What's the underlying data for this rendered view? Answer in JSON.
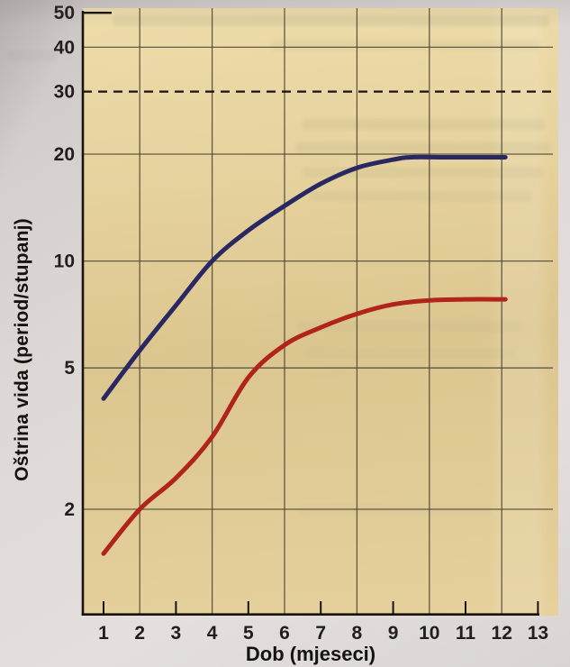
{
  "colors": {
    "page_background": "#dcd6d4",
    "plot_background": "#e3cf9a",
    "grid_line": "#4b4435",
    "axis_line": "#17130d",
    "dashed_line": "#17130d",
    "tick_text": "#221e19",
    "curve_blue": "#2a2862",
    "curve_red": "#b0241c"
  },
  "chart_data": {
    "type": "line",
    "title": "",
    "x_axis": {
      "label": "Dob (mjeseci)",
      "range": [
        1,
        13
      ],
      "ticks": [
        1,
        2,
        3,
        4,
        5,
        6,
        7,
        8,
        9,
        10,
        11,
        12,
        13
      ],
      "gridlines_at": [
        2,
        4,
        6,
        8,
        10,
        12
      ],
      "inner_ticks_at": [
        1,
        3,
        5,
        7,
        9,
        11,
        13
      ]
    },
    "y_axis": {
      "label": "Oštrina vida (period/stupanj)",
      "scale": "log",
      "range": [
        1,
        50
      ],
      "ticks": [
        50,
        40,
        30,
        20,
        10,
        5,
        2
      ],
      "gridlines_at": [
        40,
        20,
        10,
        5,
        2
      ],
      "dashed_line_at": 30,
      "axis_tick_at": 50
    },
    "grid": true,
    "legend": "none",
    "series": [
      {
        "name": "upper-curve-blue",
        "color": "#2a2862",
        "x": [
          1,
          2,
          3,
          4,
          5,
          6,
          7,
          8,
          9,
          9.5,
          10.5,
          12.1
        ],
        "y": [
          4.1,
          5.6,
          7.5,
          10,
          12.2,
          14.3,
          16.5,
          18.3,
          19.3,
          19.6,
          19.6,
          19.6
        ]
      },
      {
        "name": "lower-curve-red",
        "color": "#b0241c",
        "x": [
          1,
          2,
          3,
          4,
          5,
          6,
          7,
          8,
          9,
          10,
          11,
          12.1
        ],
        "y": [
          1.5,
          2.0,
          2.45,
          3.2,
          4.7,
          5.8,
          6.5,
          7.1,
          7.55,
          7.75,
          7.8,
          7.8
        ]
      }
    ]
  }
}
